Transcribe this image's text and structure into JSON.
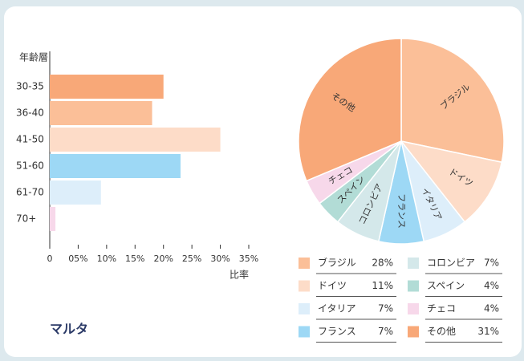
{
  "title": "マルタ",
  "chart_data": [
    {
      "type": "bar",
      "orientation": "horizontal",
      "ylabel": "年齢層",
      "xlabel": "比率",
      "categories": [
        "30-35",
        "36-40",
        "41-50",
        "51-60",
        "61-70",
        "70+"
      ],
      "values": [
        20,
        18,
        30,
        23,
        9,
        1
      ],
      "colors": [
        "#f8a878",
        "#fbbf98",
        "#fddcc8",
        "#9dd8f5",
        "#ddeefa",
        "#f7d8ea"
      ],
      "xlim": [
        0,
        35
      ],
      "xticks": [
        0,
        {
          "value": 5,
          "label": "05%"
        },
        {
          "value": 10,
          "label": "10%"
        },
        {
          "value": 15,
          "label": "15%"
        },
        {
          "value": 20,
          "label": "20%"
        },
        {
          "value": 25,
          "label": "25%"
        },
        {
          "value": 30,
          "label": "30%"
        },
        {
          "value": 35,
          "label": "35%"
        }
      ]
    },
    {
      "type": "pie",
      "categories": [
        "ブラジル",
        "ドイツ",
        "イタリア",
        "フランス",
        "コロンビア",
        "スペイン",
        "チェコ",
        "その他"
      ],
      "values": [
        28,
        11,
        7,
        7,
        7,
        4,
        4,
        31
      ],
      "value_labels": [
        "28%",
        "11%",
        "7%",
        "7%",
        "7%",
        "4%",
        "4%",
        "31%"
      ],
      "colors": [
        "#fbbf98",
        "#fddcc8",
        "#ddeefa",
        "#9dd8f5",
        "#d4e8ea",
        "#b2dcd6",
        "#f7d8ea",
        "#f8a878"
      ]
    }
  ]
}
